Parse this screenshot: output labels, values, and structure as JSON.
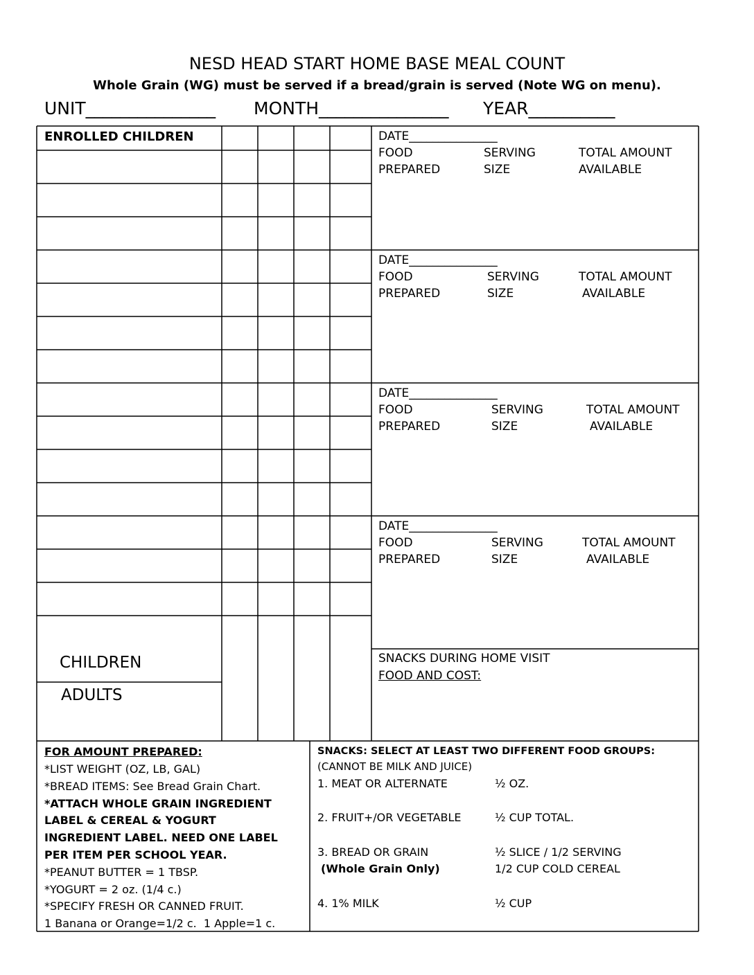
{
  "header": {
    "title": "NESD HEAD START HOME BASE MEAL COUNT",
    "subtitle": "Whole Grain (WG) must be served if a bread/grain is served (Note WG on menu).",
    "fields": [
      "UNIT_______________",
      "MONTH_______________",
      "YEAR__________"
    ]
  },
  "roster": {
    "heading": "ENROLLED CHILDREN",
    "children": "CHILDREN",
    "adults": "ADULTS"
  },
  "date_blocks": [
    {
      "date": "DATE_______________",
      "food": "FOOD",
      "serving": "SERVING",
      "total": "TOTAL AMOUNT",
      "prepared": "PREPARED",
      "size": "SIZE",
      "available": "AVAILABLE"
    },
    {
      "date": "DATE_______________",
      "food": "FOOD",
      "serving": "SERVING",
      "total": "TOTAL AMOUNT",
      "prepared": "PREPARED",
      "size": "SIZE",
      "available": "AVAILABLE"
    },
    {
      "date": "DATE_______________",
      "food": "FOOD",
      "serving": "SERVING",
      "total": "TOTAL AMOUNT",
      "prepared": "PREPARED",
      "size": "SIZE",
      "available": "AVAILABLE"
    },
    {
      "date": "DATE_______________",
      "food": "FOOD",
      "serving": "SERVING",
      "total": "TOTAL AMOUNT",
      "prepared": "PREPARED",
      "size": "SIZE",
      "available": "AVAILABLE"
    }
  ],
  "home_visit": {
    "title": "SNACKS DURING HOME VISIT",
    "subtitle": "FOOD AND COST:"
  },
  "notes": {
    "heading": "FOR AMOUNT PREPARED:",
    "lines": [
      "*LIST WEIGHT (OZ, LB, GAL)",
      "*BREAD ITEMS: See Bread Grain Chart.",
      "*ATTACH WHOLE GRAIN INGREDIENT",
      "LABEL & CEREAL & YOGURT",
      "INGREDIENT LABEL. NEED ONE LABEL",
      "PER ITEM PER SCHOOL YEAR.",
      "*PEANUT BUTTER = 1 TBSP.",
      "*YOGURT = 2 oz. (1/4 c.)",
      "*SPECIFY FRESH OR CANNED FRUIT.",
      "1 Banana or Orange=1/2 c.  1 Apple=1 c."
    ]
  },
  "snacks": {
    "heading": "SNACKS: SELECT AT LEAST TWO DIFFERENT FOOD GROUPS:",
    "note": "(CANNOT BE MILK AND JUICE)",
    "items": [
      [
        "1. MEAT OR ALTERNATE",
        "½ OZ."
      ],
      [
        "2. FRUIT+/OR VEGETABLE",
        "½ CUP TOTAL."
      ],
      [
        "3. BREAD OR GRAIN",
        "½ SLICE / 1/2 SERVING"
      ],
      [
        "(Whole Grain Only)",
        "1/2 CUP COLD CEREAL"
      ],
      [
        "4. 1% MILK",
        "½ CUP"
      ]
    ]
  }
}
